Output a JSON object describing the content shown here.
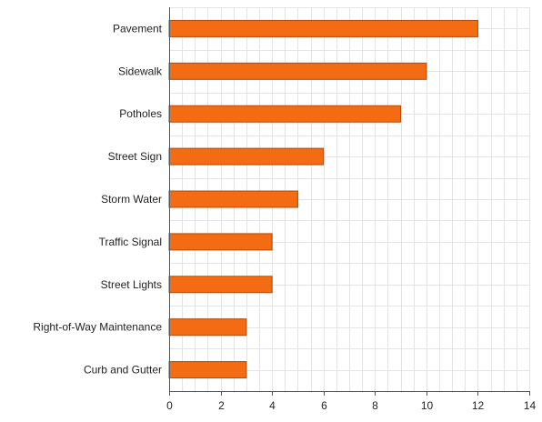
{
  "chart_data": {
    "type": "bar",
    "orientation": "horizontal",
    "categories": [
      "Pavement",
      "Sidewalk",
      "Potholes",
      "Street Sign",
      "Storm Water",
      "Traffic Signal",
      "Street Lights",
      "Right-of-Way Maintenance",
      "Curb and Gutter"
    ],
    "values": [
      12,
      10,
      9,
      6,
      5,
      4,
      4,
      3,
      3
    ],
    "xlim": [
      0,
      14
    ],
    "xticks": [
      0,
      2,
      4,
      6,
      8,
      10,
      12,
      14
    ],
    "grid": true,
    "bar_color": "#f36b12",
    "bar_edge_color": "#b54a08",
    "title": "",
    "xlabel": "",
    "ylabel": ""
  }
}
